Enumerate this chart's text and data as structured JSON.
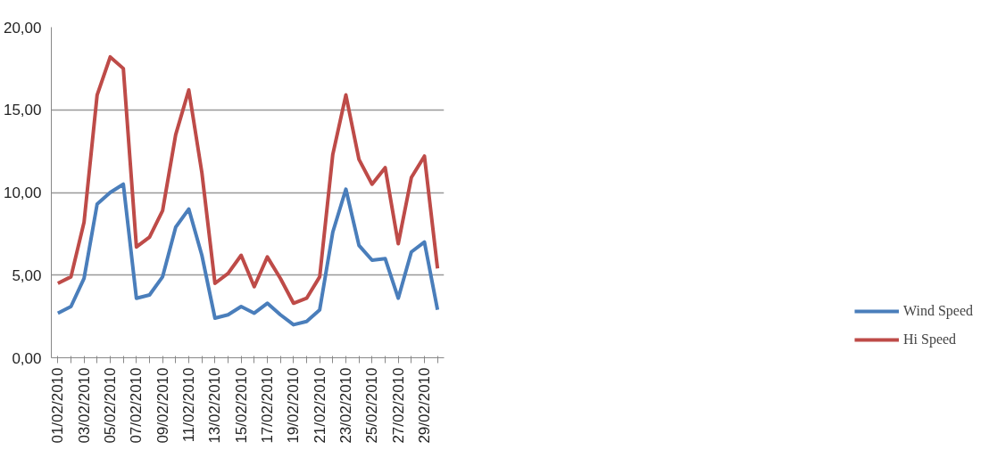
{
  "chart_data": {
    "type": "line",
    "categories": [
      "01/02/2010",
      null,
      "03/02/2010",
      null,
      "05/02/2010",
      null,
      "07/02/2010",
      null,
      "09/02/2010",
      null,
      "11/02/2010",
      null,
      "13/02/2010",
      null,
      "15/02/2010",
      null,
      "17/02/2010",
      null,
      "19/02/2010",
      null,
      "21/02/2010",
      null,
      "23/02/2010",
      null,
      "25/02/2010",
      null,
      "27/02/2010",
      null,
      "29/02/2010",
      null
    ],
    "series": [
      {
        "name": "Wind Speed",
        "color": "#4a7ebb",
        "values": [
          2.7,
          3.1,
          4.8,
          9.3,
          10.0,
          10.5,
          3.6,
          3.8,
          4.9,
          7.9,
          9.0,
          6.2,
          2.4,
          2.6,
          3.1,
          2.7,
          3.3,
          2.6,
          2.0,
          2.2,
          2.9,
          7.6,
          10.2,
          6.8,
          5.9,
          6.0,
          3.6,
          6.4,
          7.0,
          2.9
        ]
      },
      {
        "name": "Hi Speed",
        "color": "#be4b48",
        "values": [
          4.5,
          4.9,
          8.2,
          15.9,
          18.2,
          17.5,
          6.7,
          7.3,
          8.9,
          13.5,
          16.2,
          11.2,
          4.5,
          5.1,
          6.2,
          4.3,
          6.1,
          4.8,
          3.3,
          3.6,
          4.9,
          12.3,
          15.9,
          12.0,
          10.5,
          11.5,
          6.9,
          10.9,
          12.2,
          5.4
        ]
      }
    ],
    "ylim": [
      0,
      20
    ],
    "yticks": [
      {
        "value": 0,
        "label": "0,00"
      },
      {
        "value": 5,
        "label": "5,00"
      },
      {
        "value": 10,
        "label": "10,00"
      },
      {
        "value": 15,
        "label": "15,00"
      },
      {
        "value": 20,
        "label": "20,00"
      }
    ],
    "grid": "y",
    "legend": "bottom right",
    "marker": "none",
    "line_style": "solid"
  }
}
